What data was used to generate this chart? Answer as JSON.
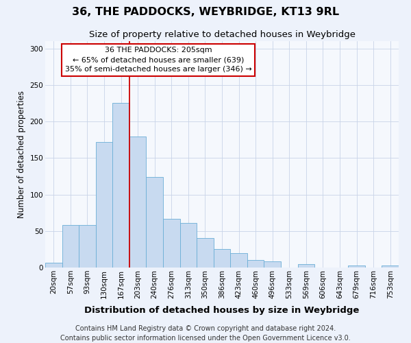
{
  "title": "36, THE PADDOCKS, WEYBRIDGE, KT13 9RL",
  "subtitle": "Size of property relative to detached houses in Weybridge",
  "xlabel": "Distribution of detached houses by size in Weybridge",
  "ylabel": "Number of detached properties",
  "categories": [
    "20sqm",
    "57sqm",
    "93sqm",
    "130sqm",
    "167sqm",
    "203sqm",
    "240sqm",
    "276sqm",
    "313sqm",
    "350sqm",
    "386sqm",
    "423sqm",
    "460sqm",
    "496sqm",
    "533sqm",
    "569sqm",
    "606sqm",
    "643sqm",
    "679sqm",
    "716sqm",
    "753sqm"
  ],
  "values": [
    7,
    58,
    58,
    172,
    225,
    179,
    124,
    67,
    61,
    40,
    25,
    20,
    10,
    8,
    0,
    5,
    0,
    0,
    3,
    0,
    3
  ],
  "bar_color": "#c8daf0",
  "bar_edge_color": "#6baed6",
  "vline_x_idx": 5,
  "vline_color": "#cc0000",
  "annotation_line1": "36 THE PADDOCKS: 205sqm",
  "annotation_line2": "← 65% of detached houses are smaller (639)",
  "annotation_line3": "35% of semi-detached houses are larger (346) →",
  "annotation_box_color": "#cc0000",
  "ylim": [
    0,
    310
  ],
  "yticks": [
    0,
    50,
    100,
    150,
    200,
    250,
    300
  ],
  "footer_line1": "Contains HM Land Registry data © Crown copyright and database right 2024.",
  "footer_line2": "Contains public sector information licensed under the Open Government Licence v3.0.",
  "title_fontsize": 11.5,
  "subtitle_fontsize": 9.5,
  "xlabel_fontsize": 9.5,
  "ylabel_fontsize": 8.5,
  "tick_fontsize": 7.5,
  "footer_fontsize": 7,
  "ann_fontsize": 8,
  "background_color": "#edf2fb",
  "plot_background_color": "#f5f8fd",
  "grid_color": "#c8d4e8"
}
